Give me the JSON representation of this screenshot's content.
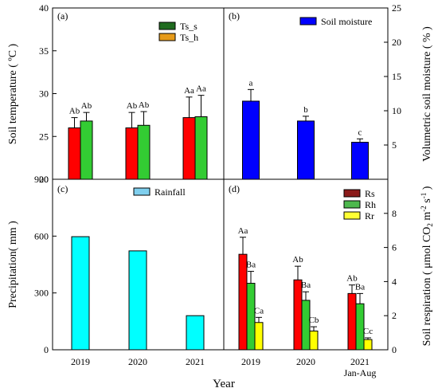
{
  "chart_data": [
    {
      "type": "bar",
      "panel_label": "(a)",
      "categories": [
        "2019",
        "2020",
        "2021"
      ],
      "ylabel": "Soil temperature ( ºC )",
      "ylim": [
        20,
        40
      ],
      "yticks": [
        20,
        25,
        30,
        35,
        40
      ],
      "legend_position": "top-right",
      "series": [
        {
          "name": "Ts_s",
          "color": "#ff0000",
          "legend_color": "#1f6b1f",
          "values": [
            26.0,
            26.0,
            27.2
          ],
          "errors": [
            1.2,
            1.8,
            2.4
          ],
          "labels": [
            "Ab",
            "Ab",
            "Aa"
          ]
        },
        {
          "name": "Ts_h",
          "color": "#33cc33",
          "legend_color": "#e69a1a",
          "values": [
            26.8,
            26.3,
            27.3
          ],
          "errors": [
            1.0,
            1.6,
            2.5
          ],
          "labels": [
            "Ab",
            "Ab",
            "Aa"
          ]
        }
      ]
    },
    {
      "type": "bar",
      "panel_label": "(b)",
      "categories": [
        "2019",
        "2020",
        "2021"
      ],
      "ylabel": "Volumetric soil moisture ( % )",
      "ylim": [
        0,
        25
      ],
      "yticks": [
        5,
        10,
        15,
        20,
        25
      ],
      "legend_position": "top-right",
      "series": [
        {
          "name": "Soil moisture",
          "color": "#0000ff",
          "values": [
            11.4,
            8.5,
            5.4
          ],
          "errors": [
            1.7,
            0.7,
            0.5
          ],
          "labels": [
            "a",
            "b",
            "c"
          ]
        }
      ]
    },
    {
      "type": "bar",
      "panel_label": "(c)",
      "categories": [
        "2019",
        "2020",
        "2021"
      ],
      "ylabel": "Precipitation( mm )",
      "ylim": [
        0,
        900
      ],
      "yticks": [
        0,
        300,
        600,
        900
      ],
      "legend_position": "top-center",
      "series": [
        {
          "name": "Rainfall",
          "color": "#00ffff",
          "legend_color": "#7fcfee",
          "values": [
            597,
            522,
            180
          ]
        }
      ]
    },
    {
      "type": "bar",
      "panel_label": "(d)",
      "categories": [
        "2019",
        "2020",
        "2021"
      ],
      "ylabel": "Soil respiration ( μmol CO2 m-2 s-1 )",
      "ylim": [
        0,
        10
      ],
      "yticks": [
        0,
        2,
        4,
        6,
        8
      ],
      "legend_position": "top-right",
      "series": [
        {
          "name": "Rs",
          "color": "#ff0000",
          "legend_color": "#8b1a1a",
          "values": [
            5.6,
            4.1,
            3.3
          ],
          "errors": [
            1.0,
            0.8,
            0.5
          ],
          "labels": [
            "Aa",
            "Ab",
            "Ab"
          ]
        },
        {
          "name": "Rh",
          "color": "#33cc33",
          "legend_color": "#4db84d",
          "values": [
            3.9,
            2.9,
            2.7
          ],
          "errors": [
            0.7,
            0.5,
            0.6
          ],
          "labels": [
            "Ba",
            "Ba",
            "Ba"
          ]
        },
        {
          "name": "Rr",
          "color": "#ffff00",
          "legend_color": "#ffff33",
          "values": [
            1.6,
            1.1,
            0.6
          ],
          "errors": [
            0.3,
            0.25,
            0.1
          ],
          "labels": [
            "Ca",
            "Cb",
            "Cc"
          ]
        }
      ]
    }
  ],
  "x_tick_labels": [
    "2019",
    "2020",
    "2021"
  ],
  "x_sublabel": "Jan-Aug",
  "xlabel": "Year"
}
